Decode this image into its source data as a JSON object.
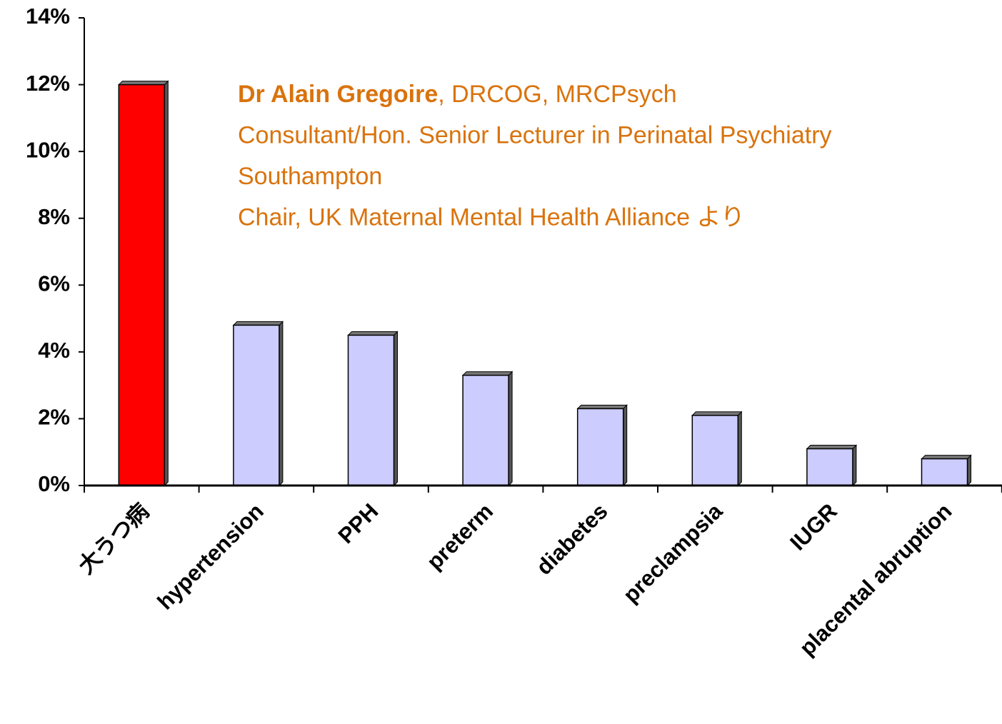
{
  "chart_data": {
    "type": "bar",
    "categories": [
      "大うつ病",
      "hypertension",
      "PPH",
      "preterm",
      "diabetes",
      "preclampsia",
      "IUGR",
      "placental abruption"
    ],
    "values": [
      12,
      4.8,
      4.5,
      3.3,
      2.3,
      2.1,
      1.1,
      0.8
    ],
    "colors": [
      "#ff0000",
      "#ccccff",
      "#ccccff",
      "#ccccff",
      "#ccccff",
      "#ccccff",
      "#ccccff",
      "#ccccff"
    ],
    "ylim": [
      0,
      14
    ],
    "yticks": [
      {
        "value": 0,
        "label": "0%"
      },
      {
        "value": 2,
        "label": "2%"
      },
      {
        "value": 4,
        "label": "4%"
      },
      {
        "value": 6,
        "label": "6%"
      },
      {
        "value": 8,
        "label": "8%"
      },
      {
        "value": 10,
        "label": "10%"
      },
      {
        "value": 12,
        "label": "12%"
      },
      {
        "value": 14,
        "label": "14%"
      }
    ],
    "annotation": {
      "name": "Dr Alain Gregoire",
      "lines": [
        ", DRCOG, MRCPsych",
        "Consultant/Hon. Senior Lecturer in Perinatal Psychiatry",
        "Southampton",
        "Chair, UK Maternal Mental Health Alliance より"
      ],
      "color": "#d9730d"
    }
  }
}
